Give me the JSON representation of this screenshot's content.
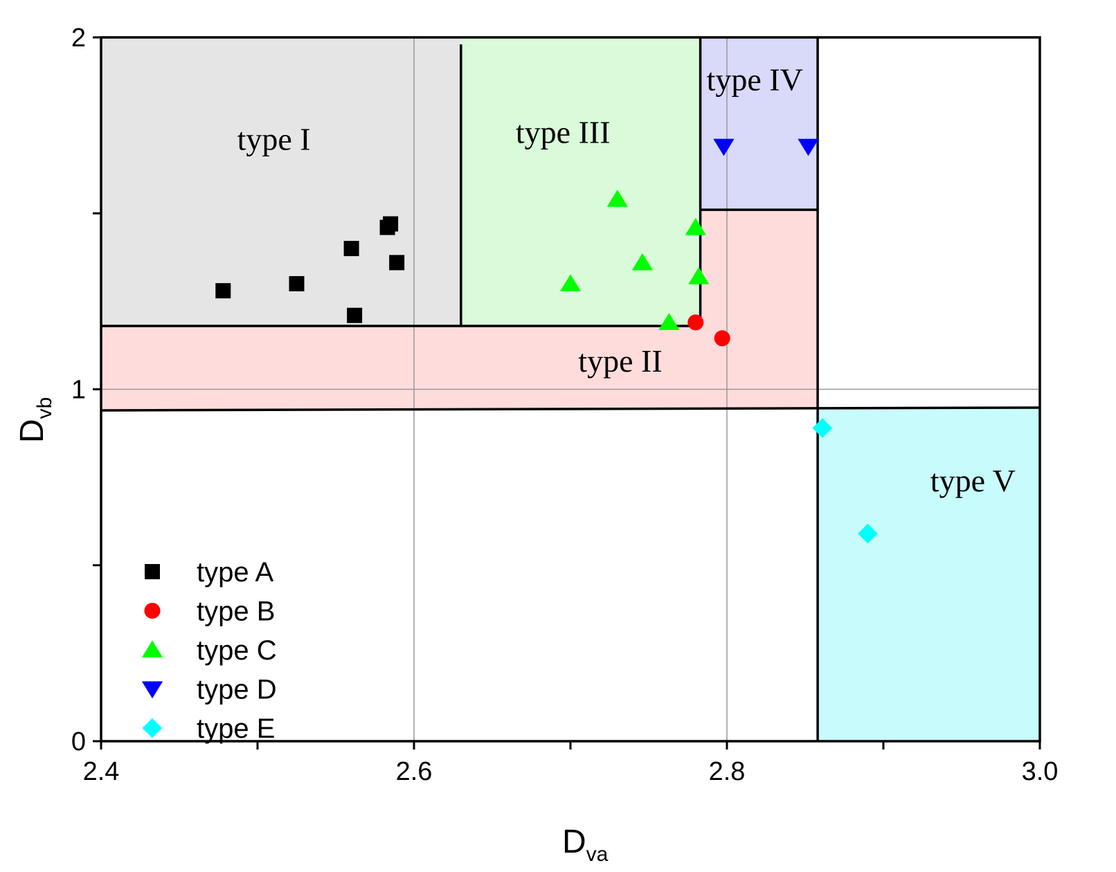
{
  "chart_data": {
    "type": "scatter",
    "title": "",
    "xlabel": {
      "main": "D",
      "sub": "va"
    },
    "ylabel": {
      "main": "D",
      "sub": "vb"
    },
    "xlim": [
      2.4,
      3.0
    ],
    "ylim": [
      0,
      2
    ],
    "x_ticks": [
      {
        "value": 2.4,
        "label": "2.4"
      },
      {
        "value": 2.6,
        "label": "2.6"
      },
      {
        "value": 2.8,
        "label": "2.8"
      },
      {
        "value": 3.0,
        "label": "3.0"
      }
    ],
    "x_minor_ticks": [
      2.5,
      2.7,
      2.9
    ],
    "y_ticks": [
      {
        "value": 0,
        "label": "0"
      },
      {
        "value": 1,
        "label": "1"
      },
      {
        "value": 2,
        "label": "2"
      }
    ],
    "y_minor_ticks": [
      0.5,
      1.5
    ],
    "grid": true,
    "regions": [
      {
        "name": "type I",
        "color": "#e5e5e5",
        "x": [
          2.4,
          2.63
        ],
        "y": [
          1.18,
          2.0
        ],
        "label_at": [
          2.487,
          1.68
        ]
      },
      {
        "name": "type II",
        "color": "#ffdcdc",
        "polygon": [
          [
            2.4,
            0.94
          ],
          [
            2.858,
            0.945
          ],
          [
            2.858,
            1.51
          ],
          [
            2.783,
            1.51
          ],
          [
            2.783,
            1.18
          ],
          [
            2.4,
            1.18
          ]
        ],
        "label_at": [
          2.705,
          1.05
        ]
      },
      {
        "name": "type III",
        "color": "#d9fbd9",
        "x": [
          2.63,
          2.783
        ],
        "y": [
          1.18,
          2.0
        ],
        "label_at": [
          2.665,
          1.7
        ]
      },
      {
        "name": "type IV",
        "color": "#d9d9fa",
        "x": [
          2.783,
          2.858
        ],
        "y": [
          1.51,
          2.0
        ],
        "label_at": [
          2.787,
          1.85
        ]
      },
      {
        "name": "type V",
        "color": "#c8fbfb",
        "x": [
          2.858,
          3.0
        ],
        "y": [
          0,
          0.945
        ],
        "label_at": [
          2.93,
          0.71
        ]
      }
    ],
    "series": [
      {
        "name": "type A",
        "marker": "square",
        "color": "#000000",
        "points": [
          [
            2.478,
            1.28
          ],
          [
            2.525,
            1.3
          ],
          [
            2.56,
            1.4
          ],
          [
            2.562,
            1.21
          ],
          [
            2.583,
            1.46
          ],
          [
            2.585,
            1.47
          ],
          [
            2.589,
            1.36
          ]
        ]
      },
      {
        "name": "type B",
        "marker": "circle",
        "color": "#ff0000",
        "points": [
          [
            2.78,
            1.19
          ],
          [
            2.797,
            1.145
          ]
        ]
      },
      {
        "name": "type C",
        "marker": "triangle-up",
        "color": "#00ff00",
        "points": [
          [
            2.73,
            1.54
          ],
          [
            2.7,
            1.3
          ],
          [
            2.746,
            1.36
          ],
          [
            2.763,
            1.19
          ],
          [
            2.78,
            1.46
          ],
          [
            2.782,
            1.32
          ]
        ]
      },
      {
        "name": "type D",
        "marker": "triangle-down",
        "color": "#0000ff",
        "points": [
          [
            2.798,
            1.69
          ],
          [
            2.852,
            1.69
          ]
        ]
      },
      {
        "name": "type E",
        "marker": "diamond",
        "color": "#00ffff",
        "points": [
          [
            2.861,
            0.89
          ],
          [
            2.89,
            0.59
          ]
        ]
      }
    ],
    "legend": {
      "position": "bottom-left",
      "entries": [
        "type A",
        "type B",
        "type C",
        "type D",
        "type E"
      ]
    }
  }
}
